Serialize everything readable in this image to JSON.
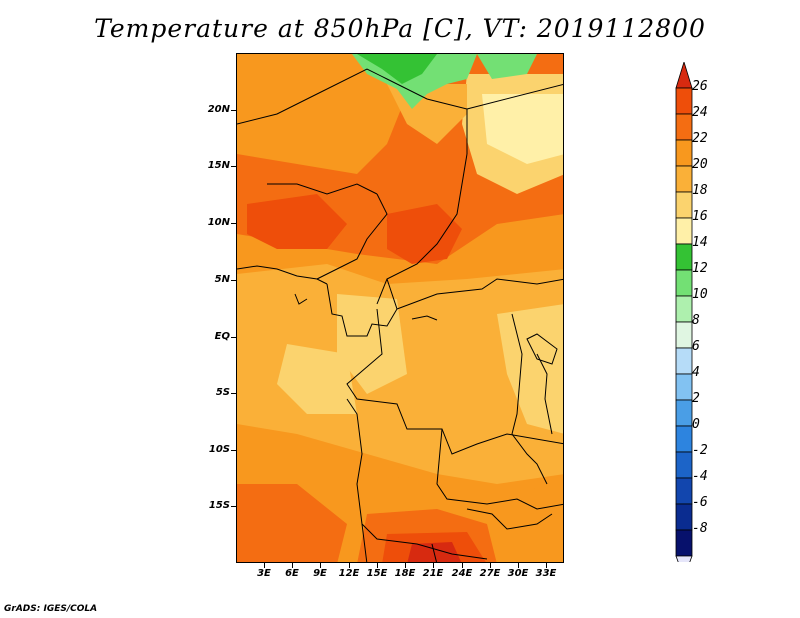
{
  "title": "Temperature at 850hPa [C], VT: 2019112800",
  "credit": "GrADS: IGES/COLA",
  "map": {
    "lat_labels": [
      "20N",
      "15N",
      "10N",
      "5N",
      "EQ",
      "5S",
      "10S",
      "15S"
    ],
    "lon_labels": [
      "3E",
      "6E",
      "9E",
      "12E",
      "15E",
      "18E",
      "21E",
      "24E",
      "27E",
      "30E",
      "33E"
    ]
  },
  "colorbar": {
    "labels": [
      "26",
      "24",
      "22",
      "20",
      "18",
      "16",
      "14",
      "12",
      "10",
      "8",
      "6",
      "4",
      "2",
      "0",
      "-2",
      "-4",
      "-6",
      "-8"
    ],
    "colors": [
      "#d72a10",
      "#ee4e0a",
      "#f46d12",
      "#f8981e",
      "#fab038",
      "#fbd36e",
      "#fff0a8",
      "#34c234",
      "#73e074",
      "#aef0ae",
      "#e0f6e2",
      "#b6dcf8",
      "#82c2f2",
      "#4a9ee6",
      "#2d84df",
      "#1c64c8",
      "#1246ae",
      "#0a2c90",
      "#07116c",
      "#e6e6fa"
    ]
  }
}
